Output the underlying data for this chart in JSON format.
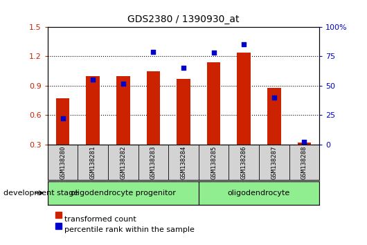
{
  "title": "GDS2380 / 1390930_at",
  "samples": [
    "GSM138280",
    "GSM138281",
    "GSM138282",
    "GSM138283",
    "GSM138284",
    "GSM138285",
    "GSM138286",
    "GSM138287",
    "GSM138288"
  ],
  "red_values": [
    0.77,
    1.0,
    1.0,
    1.05,
    0.97,
    1.14,
    1.24,
    0.88,
    0.32
  ],
  "blue_values": [
    22,
    55,
    52,
    79,
    65,
    78,
    85,
    40,
    2
  ],
  "bar_bottom": 0.3,
  "ylim_left": [
    0.3,
    1.5
  ],
  "ylim_right": [
    0,
    100
  ],
  "yticks_left": [
    0.3,
    0.6,
    0.9,
    1.2,
    1.5
  ],
  "yticks_right": [
    0,
    25,
    50,
    75,
    100
  ],
  "yticklabels_right": [
    "0",
    "25",
    "50",
    "75",
    "100%"
  ],
  "group1_label": "oligodendrocyte progenitor",
  "group2_label": "oligodendrocyte",
  "group1_count": 5,
  "group2_count": 4,
  "group_color": "#90EE90",
  "bar_color": "#cc2200",
  "marker_color": "#0000cc",
  "legend_labels": [
    "transformed count",
    "percentile rank within the sample"
  ],
  "development_stage_label": "development stage",
  "grid_lines": [
    0.6,
    0.9,
    1.2
  ]
}
